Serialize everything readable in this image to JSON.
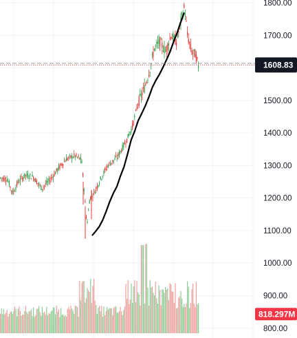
{
  "chart_data": {
    "type": "candlestick",
    "price_axis": {
      "ticks": [
        "1800.00",
        "1700.00",
        "1600.00",
        "1500.00",
        "1400.00",
        "1300.00",
        "1200.00",
        "1100.00"
      ],
      "ylim": [
        1060,
        1810
      ]
    },
    "volume_axis": {
      "ticks": [
        "1000.00",
        "900.00",
        "800.00"
      ],
      "ylim": [
        790,
        1115
      ]
    },
    "last_price": {
      "value": 1608.83,
      "label": "1608.83"
    },
    "last_volume": {
      "value": 818.297,
      "label": "818.297M"
    },
    "reference_line": {
      "value": 1614
    },
    "moving_average_line": [
      [
        1,
        1085
      ],
      [
        2,
        1098
      ],
      [
        3,
        1112
      ],
      [
        4,
        1133
      ],
      [
        5,
        1160
      ],
      [
        6,
        1190
      ],
      [
        7,
        1215
      ],
      [
        8,
        1236
      ],
      [
        9,
        1268
      ],
      [
        10,
        1296
      ],
      [
        11,
        1335
      ],
      [
        12,
        1378
      ],
      [
        13,
        1405
      ],
      [
        14,
        1438
      ],
      [
        15,
        1460
      ],
      [
        16,
        1483
      ],
      [
        17,
        1510
      ],
      [
        18,
        1540
      ],
      [
        19,
        1562
      ],
      [
        20,
        1580
      ],
      [
        21,
        1602
      ],
      [
        22,
        1625
      ],
      [
        23,
        1650
      ],
      [
        24,
        1680
      ],
      [
        25,
        1708
      ],
      [
        26,
        1740
      ],
      [
        27,
        1770
      ]
    ],
    "colors": {
      "up": "#26a69a",
      "down": "#ef5350",
      "volume_up": "#8dcc95",
      "volume_down": "#f0a09c",
      "candle_up": "#2e9d4a",
      "candle_down": "#e53935",
      "ma": "#000000",
      "last_price_bg": "#131722",
      "last_volume_bg": "#f23645",
      "grid": "#f0f3fa",
      "reference": "#9598a1",
      "last_price_line": "#e53935"
    },
    "grid": true
  }
}
